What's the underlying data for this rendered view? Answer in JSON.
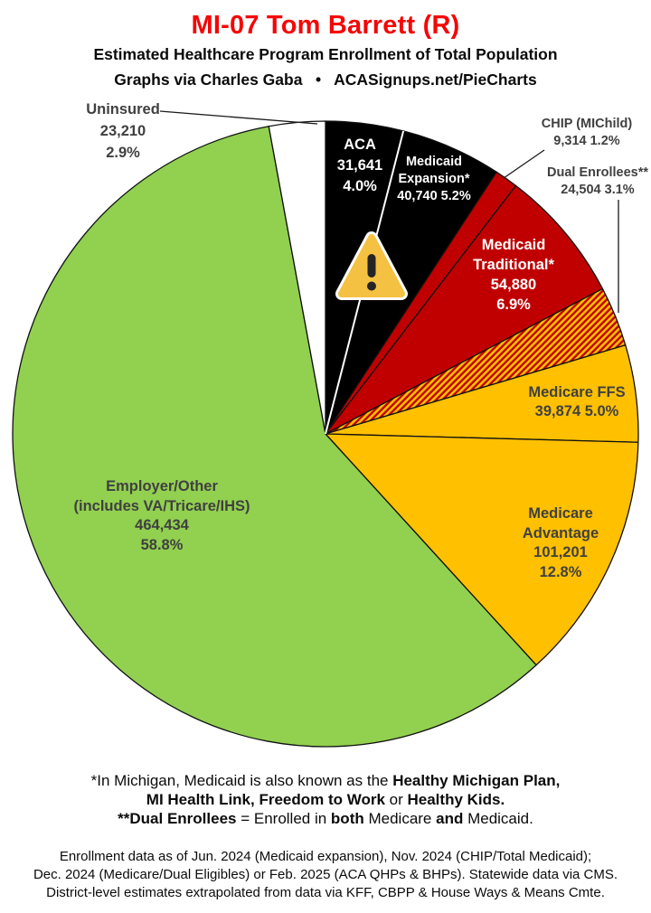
{
  "header": {
    "title": "MI-07 Tom Barrett (R)",
    "subtitle": "Estimated Healthcare Program Enrollment of Total Population",
    "credit": "Graphs via Charles Gaba   •   ACASignups.net/PieCharts"
  },
  "chart_data": {
    "type": "pie",
    "title": "Estimated Healthcare Program Enrollment of Total Population",
    "direction": "clockwise",
    "start_angle": "12-o'clock",
    "legend_position": "labels-on-slices",
    "slices": [
      {
        "name": "ACA",
        "value": 31641,
        "pct": 4.0,
        "fill": "#000000"
      },
      {
        "name": "Medicaid Expansion*",
        "value": 40740,
        "pct": 5.2,
        "fill": "#000000"
      },
      {
        "name": "CHIP (MIChild)",
        "value": 9314,
        "pct": 1.2,
        "fill": "#C00000"
      },
      {
        "name": "Medicaid Traditional*",
        "value": 54880,
        "pct": 6.9,
        "fill": "#C00000"
      },
      {
        "name": "Dual Enrollees**",
        "value": 24504,
        "pct": 3.1,
        "fill": "hatch-red-gold"
      },
      {
        "name": "Medicare FFS",
        "value": 39874,
        "pct": 5.0,
        "fill": "#FFC000"
      },
      {
        "name": "Medicare Advantage",
        "value": 101201,
        "pct": 12.8,
        "fill": "#FFC000"
      },
      {
        "name": "Employer/Other (includes VA/Tricare/IHS)",
        "value": 464434,
        "pct": 58.8,
        "fill": "#92D050"
      },
      {
        "name": "Uninsured",
        "value": 23210,
        "pct": 2.9,
        "fill": "#FFFFFF"
      }
    ],
    "colors": {
      "black": "#000000",
      "red": "#C00000",
      "gold": "#FFC000",
      "green": "#92D050",
      "white": "#FFFFFF",
      "outline": "#111111"
    }
  },
  "labels": {
    "uninsured": {
      "l1": "Uninsured",
      "l2": "23,210",
      "l3": "2.9%"
    },
    "aca": {
      "l1": "ACA",
      "l2": "31,641",
      "l3": "4.0%"
    },
    "expansion": {
      "l1": "Medicaid",
      "l2": "Expansion*",
      "l3": "40,740 5.2%"
    },
    "chip": {
      "l1": "CHIP (MIChild)",
      "l2": "9,314 1.2%"
    },
    "dual": {
      "l1": "Dual Enrollees**",
      "l2": "24,504 3.1%"
    },
    "traditional": {
      "l1": "Medicaid",
      "l2": "Traditional*",
      "l3": "54,880",
      "l4": "6.9%"
    },
    "ffs": {
      "l1": "Medicare FFS",
      "l2": "39,874 5.0%"
    },
    "advantage": {
      "l1": "Medicare",
      "l2": "Advantage",
      "l3": "101,201",
      "l4": "12.8%"
    },
    "employer": {
      "l1": "Employer/Other",
      "l2": "(includes VA/Tricare/IHS)",
      "l3": "464,434",
      "l4": "58.8%"
    }
  },
  "footnotes": {
    "line1": [
      {
        "text": "*In Michigan, Medicaid is also known as the ",
        "bold": false
      },
      {
        "text": "Healthy Michigan Plan,",
        "bold": true
      }
    ],
    "line2": [
      {
        "text": "MI Health Link, Freedom to Work",
        "bold": true
      },
      {
        "text": " or ",
        "bold": false
      },
      {
        "text": "Healthy Kids.",
        "bold": true
      }
    ],
    "line3": [
      {
        "text": "**Dual Enrollees",
        "bold": true
      },
      {
        "text": " = Enrolled in ",
        "bold": false
      },
      {
        "text": "both",
        "bold": true
      },
      {
        "text": " Medicare ",
        "bold": false
      },
      {
        "text": "and",
        "bold": true
      },
      {
        "text": " Medicaid.",
        "bold": false
      }
    ]
  },
  "source": {
    "line1": "Enrollment data as of Jun. 2024 (Medicaid expansion), Nov. 2024 (CHIP/Total Medicaid);",
    "line2": "Dec. 2024 (Medicare/Dual Eligibles) or Feb. 2025 (ACA QHPs & BHPs). Statewide data via CMS.",
    "line3": "District-level estimates extrapolated from data via KFF, CBPP & House Ways & Means Cmte."
  }
}
